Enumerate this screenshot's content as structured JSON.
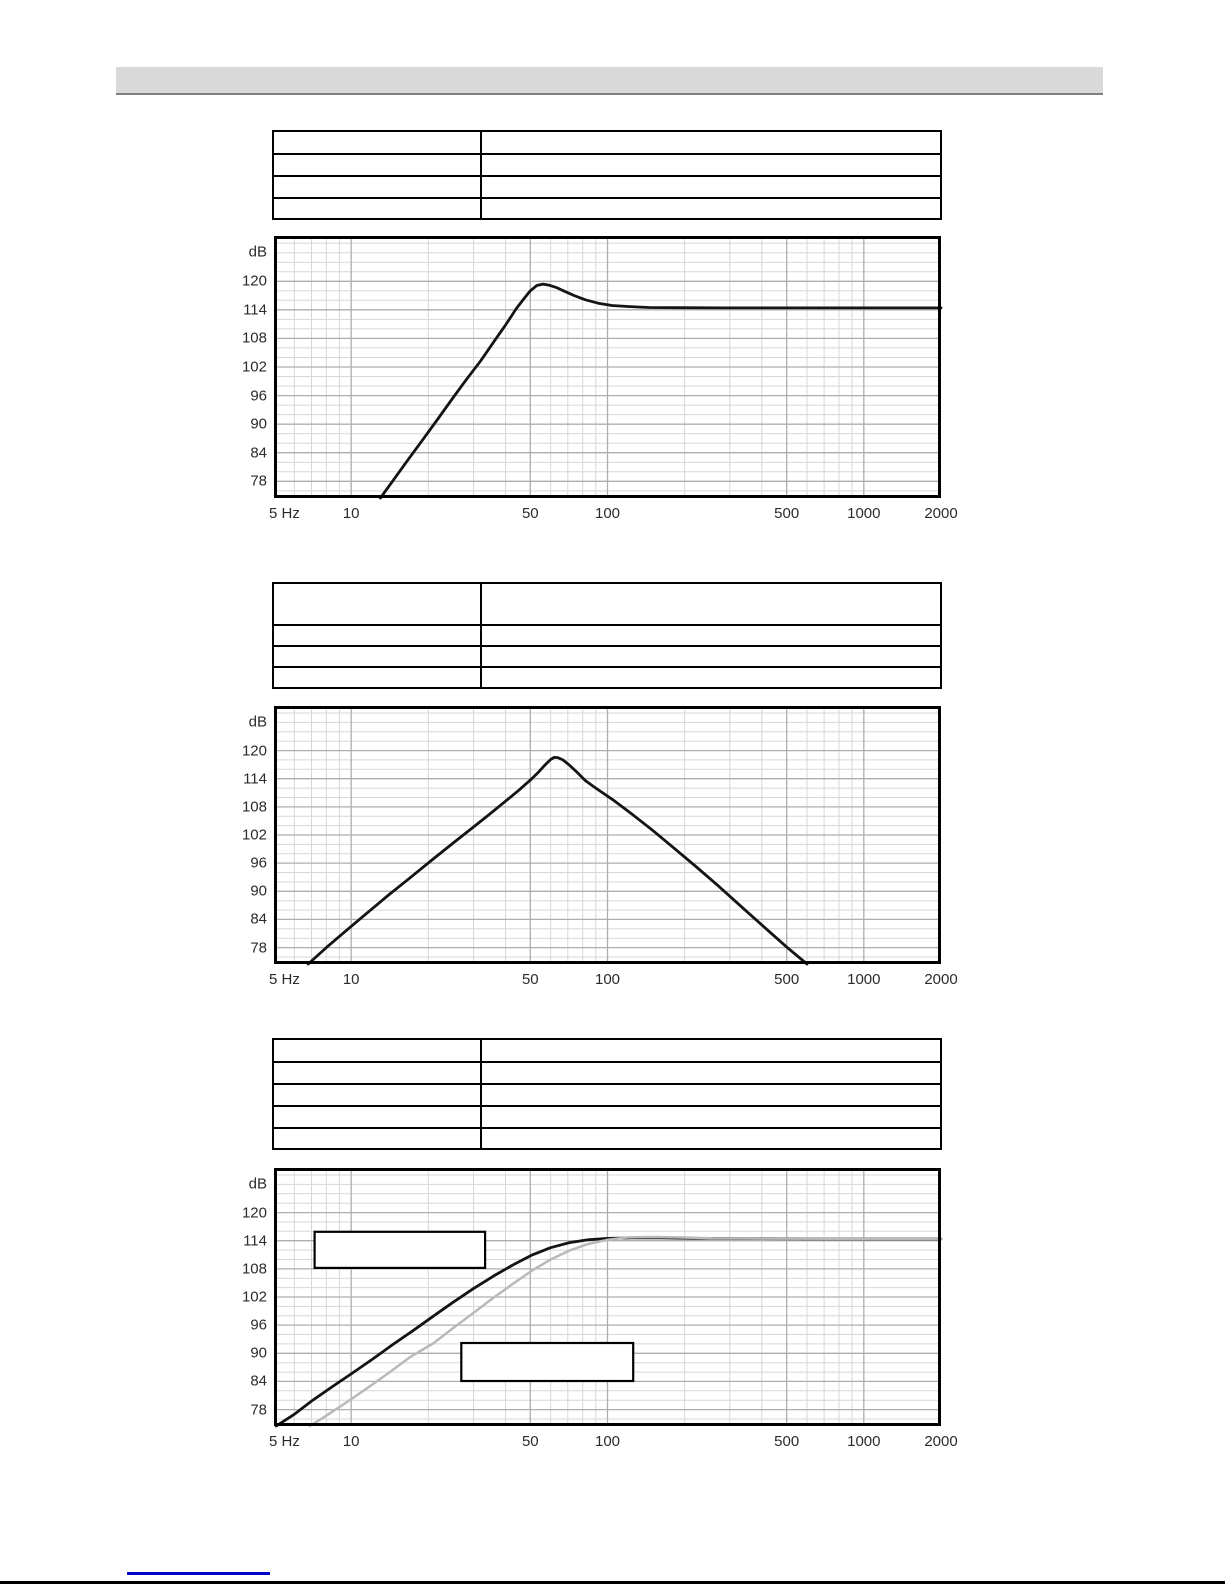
{
  "page": {
    "background": "#ffffff"
  },
  "header_bar": {
    "text": "",
    "bg": "#d9d9d9",
    "border_color": "#808080"
  },
  "tables": [
    {
      "name": "spec-table-1",
      "columns": 2,
      "rows": [
        [
          "",
          ""
        ],
        [
          "",
          ""
        ],
        [
          "",
          ""
        ],
        [
          "",
          ""
        ]
      ]
    },
    {
      "name": "spec-table-2",
      "columns": 2,
      "rows": [
        [
          "",
          ""
        ],
        [
          "",
          ""
        ],
        [
          "",
          ""
        ],
        [
          "",
          ""
        ]
      ]
    },
    {
      "name": "spec-table-3",
      "columns": 2,
      "rows": [
        [
          "",
          ""
        ],
        [
          "",
          ""
        ],
        [
          "",
          ""
        ],
        [
          "",
          ""
        ],
        [
          "",
          ""
        ]
      ]
    }
  ],
  "footer": {
    "link_text": "",
    "link_color": "#0000cc",
    "rule_color": "#000000"
  },
  "chart_data": [
    {
      "type": "line",
      "title": "",
      "xlabel": "Hz",
      "ylabel": "dB",
      "x_scale": "log",
      "xlim": [
        5,
        2000
      ],
      "ylim": [
        74.5,
        129.5
      ],
      "grid": true,
      "legend": "none",
      "y_unit_label": "dB",
      "y_ticks": [
        120,
        114,
        108,
        102,
        96,
        90,
        84,
        78
      ],
      "x_ticks": [
        {
          "label": "5 Hz",
          "value": 5,
          "align": "left"
        },
        {
          "label": "10",
          "value": 10
        },
        {
          "label": "50",
          "value": 50
        },
        {
          "label": "100",
          "value": 100
        },
        {
          "label": "500",
          "value": 500
        },
        {
          "label": "1000",
          "value": 1000
        },
        {
          "label": "2000",
          "value": 2000
        }
      ],
      "minor_x": [
        6,
        7,
        8,
        9,
        20,
        30,
        40,
        60,
        70,
        80,
        90,
        200,
        300,
        400,
        600,
        700,
        800,
        900
      ],
      "major_x": [
        10,
        50,
        100,
        500,
        1000
      ],
      "colors": {
        "border": "#000000",
        "grid_minor": "#d7d7d7",
        "grid_major": "#aeaeae"
      },
      "series": [
        {
          "name": "frequency-response",
          "color": "#141414",
          "width": 2.8,
          "points": [
            [
              13,
              74.5
            ],
            [
              14.5,
              78
            ],
            [
              16.5,
              82.2
            ],
            [
              19,
              86.7
            ],
            [
              22,
              91.4
            ],
            [
              25,
              95.6
            ],
            [
              28,
              99.2
            ],
            [
              32,
              103.3
            ],
            [
              36,
              107.3
            ],
            [
              40,
              110.8
            ],
            [
              44,
              114.2
            ],
            [
              47,
              116.2
            ],
            [
              50,
              118
            ],
            [
              53,
              119.1
            ],
            [
              56,
              119.4
            ],
            [
              59,
              119.2
            ],
            [
              63,
              118.7
            ],
            [
              68,
              117.9
            ],
            [
              74,
              117
            ],
            [
              82,
              116.1
            ],
            [
              92,
              115.4
            ],
            [
              104,
              114.9
            ],
            [
              120,
              114.7
            ],
            [
              145,
              114.5
            ],
            [
              190,
              114.45
            ],
            [
              280,
              114.4
            ],
            [
              500,
              114.4
            ],
            [
              1000,
              114.4
            ],
            [
              2000,
              114.4
            ]
          ]
        }
      ],
      "annotation_boxes": []
    },
    {
      "type": "line",
      "title": "",
      "xlabel": "Hz",
      "ylabel": "dB",
      "x_scale": "log",
      "xlim": [
        5,
        2000
      ],
      "ylim": [
        74.5,
        129.5
      ],
      "grid": true,
      "legend": "none",
      "y_unit_label": "dB",
      "y_ticks": [
        120,
        114,
        108,
        102,
        96,
        90,
        84,
        78
      ],
      "x_ticks": [
        {
          "label": "5 Hz",
          "value": 5,
          "align": "left"
        },
        {
          "label": "10",
          "value": 10
        },
        {
          "label": "50",
          "value": 50
        },
        {
          "label": "100",
          "value": 100
        },
        {
          "label": "500",
          "value": 500
        },
        {
          "label": "1000",
          "value": 1000
        },
        {
          "label": "2000",
          "value": 2000
        }
      ],
      "minor_x": [
        6,
        7,
        8,
        9,
        20,
        30,
        40,
        60,
        70,
        80,
        90,
        200,
        300,
        400,
        600,
        700,
        800,
        900
      ],
      "major_x": [
        10,
        50,
        100,
        500,
        1000
      ],
      "colors": {
        "border": "#000000",
        "grid_minor": "#d7d7d7",
        "grid_major": "#aeaeae"
      },
      "series": [
        {
          "name": "bandpass-response",
          "color": "#141414",
          "width": 2.8,
          "points": [
            [
              6.8,
              74.5
            ],
            [
              8,
              78
            ],
            [
              9.5,
              81.5
            ],
            [
              11.5,
              85.3
            ],
            [
              14,
              89.2
            ],
            [
              17,
              92.9
            ],
            [
              21,
              97
            ],
            [
              25,
              100.3
            ],
            [
              30,
              103.7
            ],
            [
              35,
              106.6
            ],
            [
              40,
              109.2
            ],
            [
              45,
              111.5
            ],
            [
              50,
              113.7
            ],
            [
              54,
              115.5
            ],
            [
              57,
              116.9
            ],
            [
              60,
              118.1
            ],
            [
              62,
              118.55
            ],
            [
              64,
              118.5
            ],
            [
              67,
              118
            ],
            [
              71,
              116.9
            ],
            [
              76,
              115.4
            ],
            [
              82,
              113.6
            ],
            [
              90,
              112
            ],
            [
              105,
              109.5
            ],
            [
              125,
              106.4
            ],
            [
              150,
              103
            ],
            [
              180,
              99.4
            ],
            [
              220,
              95.4
            ],
            [
              270,
              91.2
            ],
            [
              330,
              86.9
            ],
            [
              410,
              82.3
            ],
            [
              500,
              78.1
            ],
            [
              600,
              74.5
            ]
          ]
        }
      ],
      "annotation_boxes": []
    },
    {
      "type": "line",
      "title": "",
      "xlabel": "Hz",
      "ylabel": "dB",
      "x_scale": "log",
      "xlim": [
        5,
        2000
      ],
      "ylim": [
        74.5,
        129.5
      ],
      "grid": true,
      "legend": "none",
      "y_unit_label": "dB",
      "y_ticks": [
        120,
        114,
        108,
        102,
        96,
        90,
        84,
        78
      ],
      "x_ticks": [
        {
          "label": "5 Hz",
          "value": 5,
          "align": "left"
        },
        {
          "label": "10",
          "value": 10
        },
        {
          "label": "50",
          "value": 50
        },
        {
          "label": "100",
          "value": 100
        },
        {
          "label": "500",
          "value": 500
        },
        {
          "label": "1000",
          "value": 1000
        },
        {
          "label": "2000",
          "value": 2000
        }
      ],
      "minor_x": [
        6,
        7,
        8,
        9,
        20,
        30,
        40,
        60,
        70,
        80,
        90,
        200,
        300,
        400,
        600,
        700,
        800,
        900
      ],
      "major_x": [
        10,
        50,
        100,
        500,
        1000
      ],
      "colors": {
        "border": "#000000",
        "grid_minor": "#d7d7d7",
        "grid_major": "#aeaeae"
      },
      "series": [
        {
          "name": "black-curve",
          "color": "#141414",
          "width": 2.8,
          "points": [
            [
              5.1,
              74.5
            ],
            [
              6,
              77
            ],
            [
              7,
              79.8
            ],
            [
              8.5,
              83
            ],
            [
              10,
              85.6
            ],
            [
              12,
              88.6
            ],
            [
              14.5,
              91.8
            ],
            [
              17.5,
              94.9
            ],
            [
              21,
              98
            ],
            [
              25,
              100.9
            ],
            [
              30,
              103.8
            ],
            [
              36,
              106.5
            ],
            [
              43,
              108.9
            ],
            [
              51,
              111
            ],
            [
              60,
              112.5
            ],
            [
              71,
              113.6
            ],
            [
              84,
              114.2
            ],
            [
              100,
              114.5
            ],
            [
              125,
              114.6
            ],
            [
              160,
              114.6
            ],
            [
              220,
              114.5
            ],
            [
              350,
              114.45
            ],
            [
              600,
              114.4
            ],
            [
              1200,
              114.4
            ],
            [
              2000,
              114.4
            ]
          ]
        },
        {
          "name": "gray-curve",
          "color": "#b9b9b9",
          "width": 2.5,
          "points": [
            [
              6.9,
              74.5
            ],
            [
              8,
              76.7
            ],
            [
              9.5,
              79.4
            ],
            [
              11.5,
              82.5
            ],
            [
              14,
              85.8
            ],
            [
              17,
              89.2
            ],
            [
              21,
              92.2
            ],
            [
              25,
              95.4
            ],
            [
              30,
              98.6
            ],
            [
              36,
              101.9
            ],
            [
              43,
              104.9
            ],
            [
              51,
              107.7
            ],
            [
              60,
              110
            ],
            [
              71,
              111.9
            ],
            [
              84,
              113.3
            ],
            [
              100,
              114.2
            ],
            [
              120,
              114.7
            ],
            [
              150,
              114.8
            ],
            [
              190,
              114.7
            ],
            [
              260,
              114.5
            ],
            [
              400,
              114.45
            ],
            [
              800,
              114.4
            ],
            [
              2000,
              114.4
            ]
          ]
        }
      ],
      "annotation_boxes": [
        {
          "x1": 7.2,
          "x2": 33.3,
          "y1": 108.2,
          "y2": 115.9,
          "label": ""
        },
        {
          "x1": 26.9,
          "x2": 126,
          "y1": 84.1,
          "y2": 92.2,
          "label": ""
        }
      ]
    }
  ]
}
